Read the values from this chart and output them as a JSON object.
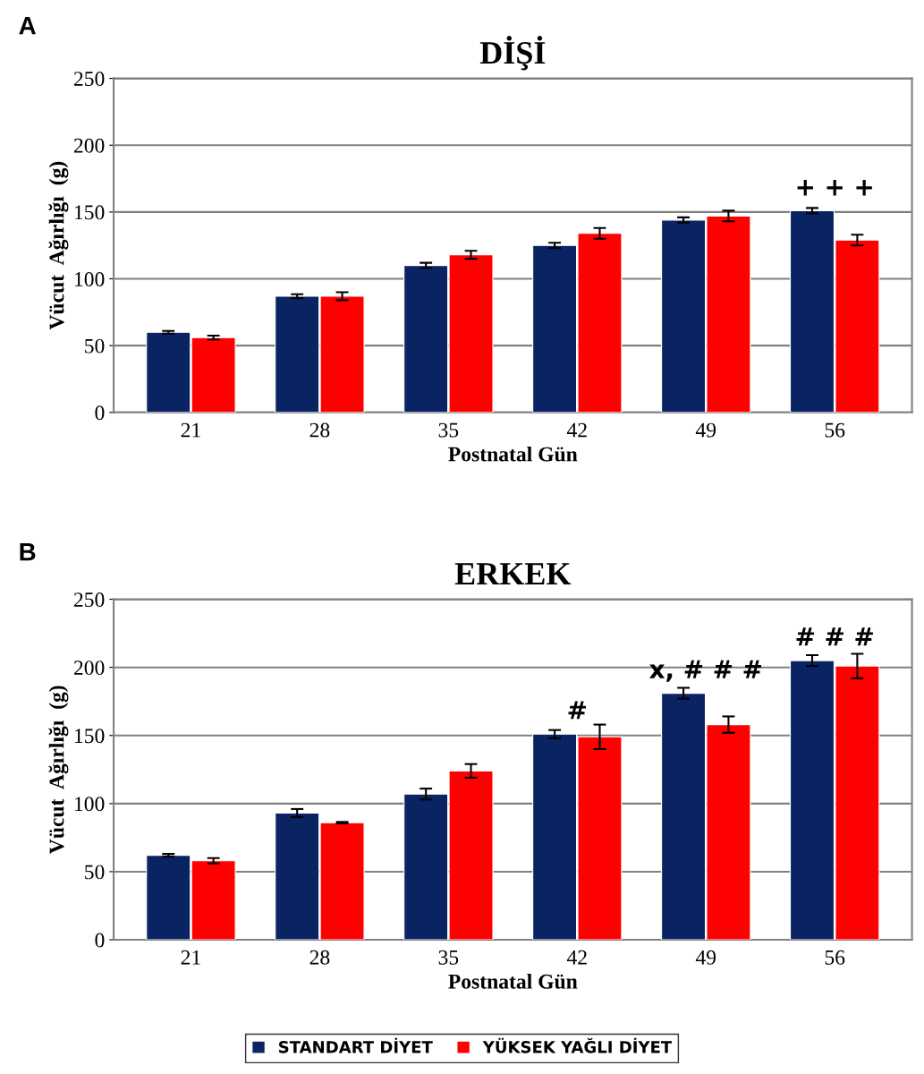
{
  "chart_data": [
    {
      "type": "bar",
      "title": "DİŞİ",
      "xlabel": "Postnatal Gün",
      "ylabel": "Vücut  Ağırlığı  (g)",
      "categories": [
        "21",
        "28",
        "35",
        "42",
        "49",
        "56"
      ],
      "series": [
        {
          "color": "#0a2463",
          "values": [
            60,
            87,
            110,
            125,
            144,
            151
          ],
          "errors": [
            1,
            1.5,
            2,
            2,
            2,
            2
          ]
        },
        {
          "color": "#ff0000",
          "values": [
            56,
            87,
            118,
            134,
            147,
            129
          ],
          "errors": [
            1.5,
            3,
            3,
            4,
            4,
            4
          ]
        }
      ],
      "ylim": [
        0,
        250
      ],
      "yticks": [
        0,
        50,
        100,
        150,
        200,
        250
      ],
      "grid": "y",
      "annotations": [
        "A",
        {
          "text": "+ + +",
          "x": "56",
          "y": 151
        }
      ]
    },
    {
      "type": "bar",
      "title": "ERKEK",
      "xlabel": "Postnatal Gün",
      "ylabel": "Vücut  Ağırlığı  (g)",
      "categories": [
        "21",
        "28",
        "35",
        "42",
        "49",
        "56"
      ],
      "series": [
        {
          "name": "STANDART DİYET",
          "color": "#0a2463",
          "values": [
            62,
            93,
            107,
            151,
            181,
            205
          ],
          "errors": [
            1,
            3,
            4,
            3,
            4,
            4
          ]
        },
        {
          "name": "YÜKSEK YAĞLI DİYET",
          "color": "#ff0000",
          "values": [
            58,
            86,
            124,
            149,
            158,
            201
          ],
          "errors": [
            2,
            0.5,
            5,
            9,
            6,
            9
          ]
        }
      ],
      "ylim": [
        0,
        250
      ],
      "yticks": [
        0,
        50,
        100,
        150,
        200,
        250
      ],
      "grid": "y",
      "legend": "bottom",
      "annotations": [
        "B",
        {
          "text": "#",
          "x": "42",
          "y": 151
        },
        {
          "text": "x, # # #",
          "x": "49",
          "y": 181
        },
        {
          "text": "# # #",
          "x": "56",
          "y": 205
        }
      ]
    }
  ]
}
